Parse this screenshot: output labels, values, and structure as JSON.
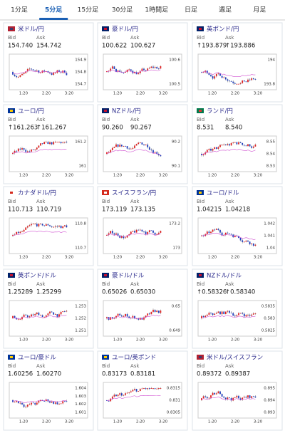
{
  "tabs": [
    {
      "label": "1分足"
    },
    {
      "label": "5分足",
      "active": true
    },
    {
      "label": "15分足"
    },
    {
      "label": "30分足"
    },
    {
      "label": "1時間足"
    },
    {
      "label": "日足"
    },
    {
      "label": "週足"
    },
    {
      "label": "月足"
    }
  ],
  "bid_label": "Bid",
  "ask_label": "Ask",
  "cards": [
    {
      "name": "米ドル/円",
      "bid": "154.740",
      "ask": "154.742",
      "yticks": [
        "154.9",
        "154.8",
        "154.7"
      ],
      "xticks": [
        "1:20",
        "2:20",
        "3:20"
      ]
    },
    {
      "name": "豪ドル/円",
      "bid": "100.622",
      "ask": "100.627",
      "yticks": [
        "100.6",
        "100.5"
      ],
      "xticks": [
        "1:20",
        "2:20",
        "3:20"
      ]
    },
    {
      "name": "英ポンド/円",
      "bid": "↑193.879",
      "ask": "↑193.886",
      "yticks": [
        "194",
        "193.8"
      ],
      "xticks": [
        "1:20",
        "2:20",
        "3:20"
      ]
    },
    {
      "name": "ユーロ/円",
      "bid": "↑161.263",
      "ask": "↑161.267",
      "yticks": [
        "161.2",
        "161"
      ],
      "xticks": [
        "1:20",
        "2:20",
        "3:20"
      ]
    },
    {
      "name": "NZドル/円",
      "bid": "90.260",
      "ask": "90.267",
      "yticks": [
        "90.2",
        "90.1"
      ],
      "xticks": [
        "1:20",
        "2:20",
        "3:20"
      ]
    },
    {
      "name": "ランド/円",
      "bid": "8.531",
      "ask": "8.540",
      "yticks": [
        "8.55",
        "8.54",
        "8.53"
      ],
      "xticks": [
        "1:20",
        "2:20",
        "3:20"
      ]
    },
    {
      "name": "カナダドル/円",
      "bid": "110.713",
      "ask": "110.719",
      "yticks": [
        "110.8",
        "110.7"
      ],
      "xticks": [
        "1:20",
        "2:20",
        "3:20"
      ]
    },
    {
      "name": "スイスフラン/円",
      "bid": "173.119",
      "ask": "173.135",
      "yticks": [
        "173.2",
        "173"
      ],
      "xticks": [
        "1:20",
        "2:20",
        "3:20"
      ]
    },
    {
      "name": "ユーロ/ドル",
      "bid": "1.04215",
      "ask": "1.04218",
      "yticks": [
        "1.042",
        "1.041",
        "1.04"
      ],
      "xticks": [
        "1:20",
        "2:20",
        "3:20"
      ]
    },
    {
      "name": "英ポンド/ドル",
      "bid": "1.25289",
      "ask": "1.25299",
      "yticks": [
        "1.253",
        "1.252",
        "1.251"
      ],
      "xticks": [
        "1:20",
        "2:20",
        "3:20"
      ]
    },
    {
      "name": "豪ドル/ドル",
      "bid": "0.65026",
      "ask": "0.65030",
      "yticks": [
        "0.65",
        "0.649"
      ],
      "xticks": [
        "1:20",
        "2:20",
        "3:20"
      ]
    },
    {
      "name": "NZドル/ドル",
      "bid": "↑0.58326",
      "ask": "↑0.58340",
      "yticks": [
        "0.5835",
        "0.583",
        "0.5825"
      ],
      "xticks": [
        "1:20",
        "2:20",
        "3:20"
      ]
    },
    {
      "name": "ユーロ/豪ドル",
      "bid": "1.60256",
      "ask": "1.60270",
      "yticks": [
        "1.604",
        "1.603",
        "1.602",
        "1.601"
      ],
      "xticks": [
        "1:20",
        "2:20",
        "3:20"
      ]
    },
    {
      "name": "ユーロ/英ポンド",
      "bid": "0.83173",
      "ask": "0.83181",
      "yticks": [
        "0.8315",
        "0.831",
        "0.8305"
      ],
      "xticks": [
        "1:20",
        "2:20",
        "3:20"
      ]
    },
    {
      "name": "米ドル/スイスフラン",
      "bid": "0.89372",
      "ask": "0.89387",
      "yticks": [
        "0.895",
        "0.894",
        "0.893"
      ],
      "xticks": [
        "1:20",
        "2:20",
        "3:20"
      ]
    }
  ]
}
